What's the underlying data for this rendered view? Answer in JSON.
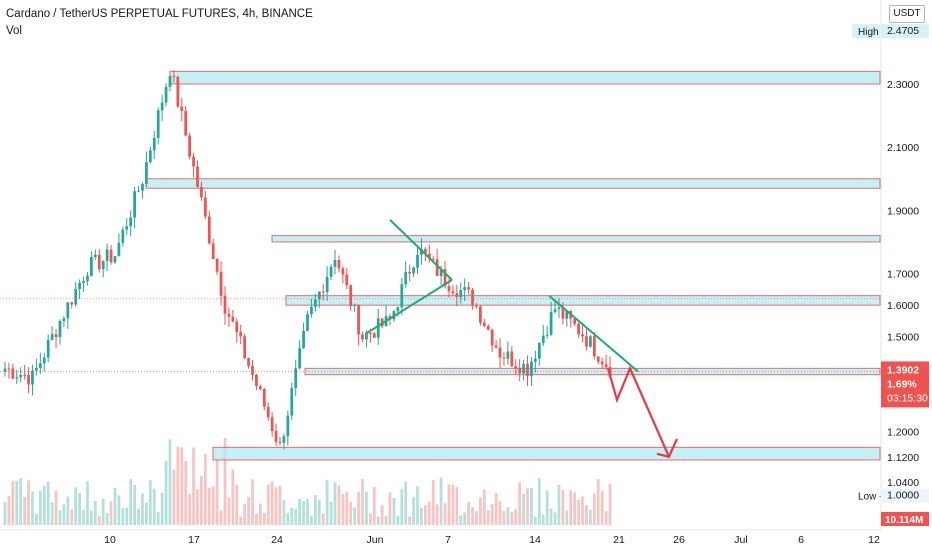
{
  "title": "Cardano / TetherUS PERPETUAL FUTURES, 4h, BINANCE",
  "volume_label": "Vol",
  "currency_button": "USDT",
  "colors": {
    "up": "#26a69a",
    "down": "#ef5350",
    "zone_fill": "#b2ebf2",
    "zone_border": "#e53935",
    "trendline": "#1faa77",
    "forecast_arrow": "#e53945",
    "price_tag": "#ef5350"
  },
  "chart_data": {
    "type": "candlestick",
    "symbol": "Cardano / TetherUS PERPETUAL FUTURES",
    "timeframe": "4h",
    "exchange": "BINANCE",
    "x_tick_labels": [
      "10",
      "17",
      "24",
      "Jun",
      "7",
      "14",
      "21",
      "26",
      "Jul",
      "6",
      "12"
    ],
    "y_tick_labels": [
      "2.3000",
      "2.1000",
      "1.9000",
      "1.7000",
      "1.6000",
      "1.5000",
      "1.2000",
      "1.1200",
      "1.0400"
    ],
    "price_labels": {
      "high": "High - 2.4705",
      "low": "Low - 1.0000",
      "last": "1.3902",
      "change": "1.69%",
      "countdown": "03:15:30",
      "volume": "10.114M"
    },
    "y_range": [
      0.92,
      2.55
    ],
    "last_price": 1.3902,
    "prev_close_reference": 1.62,
    "support_resistance_zones": [
      {
        "low": 2.3,
        "high": 2.34
      },
      {
        "low": 1.97,
        "high": 2.0
      },
      {
        "low": 1.8,
        "high": 1.82
      },
      {
        "low": 1.6,
        "high": 1.63
      },
      {
        "low": 1.38,
        "high": 1.4
      },
      {
        "low": 1.11,
        "high": 1.15
      }
    ],
    "path_key_points": [
      [
        1.4,
        "start"
      ],
      [
        1.37,
        "dip"
      ],
      [
        1.55,
        "rise"
      ],
      [
        1.72,
        "rise"
      ],
      [
        1.76,
        "pre-peak"
      ],
      [
        2.0,
        "run"
      ],
      [
        2.35,
        "peak"
      ],
      [
        1.98,
        "fall"
      ],
      [
        1.6,
        "crash"
      ],
      [
        1.38,
        "low"
      ],
      [
        1.15,
        "capitulation"
      ],
      [
        1.55,
        "recovery"
      ],
      [
        1.76,
        "bounce"
      ],
      [
        1.5,
        "retest"
      ],
      [
        1.55,
        "range"
      ],
      [
        1.78,
        "top"
      ],
      [
        1.68,
        "wedge"
      ],
      [
        1.62,
        "break"
      ],
      [
        1.45,
        "drop"
      ],
      [
        1.4,
        "low"
      ],
      [
        1.59,
        "swing"
      ],
      [
        1.51,
        "slide"
      ],
      [
        1.4,
        "current"
      ]
    ],
    "trendlines": [
      {
        "from": [
          "May 30",
          1.51
        ],
        "to": [
          "Jun 8",
          1.68
        ]
      },
      {
        "from": [
          "Jun 1",
          1.87
        ],
        "to": [
          "Jun 8",
          1.68
        ]
      },
      {
        "from": [
          "Jun 14",
          1.63
        ],
        "to": [
          "Jun 21",
          1.39
        ]
      }
    ],
    "forecast_path": [
      [
        "Jun 20",
        1.4
      ],
      [
        "Jun 20",
        1.3
      ],
      [
        "Jun 22",
        1.4
      ],
      [
        "Jun 25",
        1.12
      ]
    ]
  }
}
